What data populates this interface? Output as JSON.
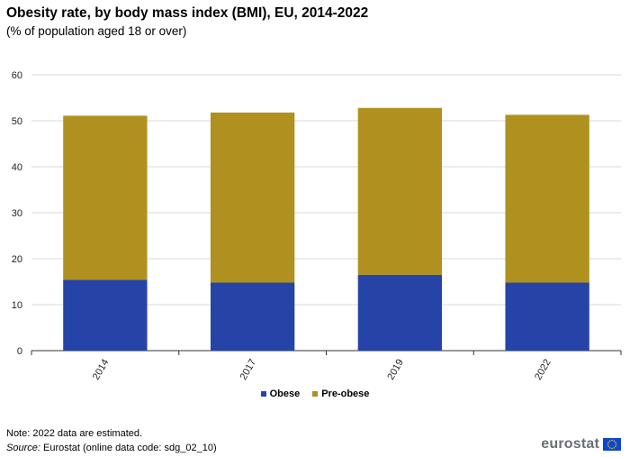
{
  "title": "Obesity rate, by body mass index (BMI), EU, 2014-2022",
  "subtitle": "(% of population aged 18 or over)",
  "note": "Note: 2022 data are estimated.",
  "source": {
    "label": "Source:",
    "text": "Eurostat (online data code: sdg_02_10)"
  },
  "logo_text": "eurostat",
  "colors": {
    "obese": "#2644a7",
    "pre_obese": "#b09120",
    "grid": "#d9d9d9",
    "axis": "#333333",
    "flag": "#0e47cb",
    "stars": "#ffd617"
  },
  "chart_data": {
    "type": "bar",
    "stacked": true,
    "categories": [
      "2014",
      "2017",
      "2019",
      "2022"
    ],
    "series": [
      {
        "name": "Obese",
        "color": "#2644a7",
        "values": [
          15.4,
          14.8,
          16.5,
          14.8
        ]
      },
      {
        "name": "Pre-obese",
        "color": "#b09120",
        "values": [
          35.7,
          37.0,
          36.3,
          36.5
        ]
      }
    ],
    "ylim": [
      0,
      60
    ],
    "yticks": [
      0,
      10,
      20,
      30,
      40,
      50,
      60
    ],
    "grid": true,
    "legend_position": "bottom-center"
  }
}
